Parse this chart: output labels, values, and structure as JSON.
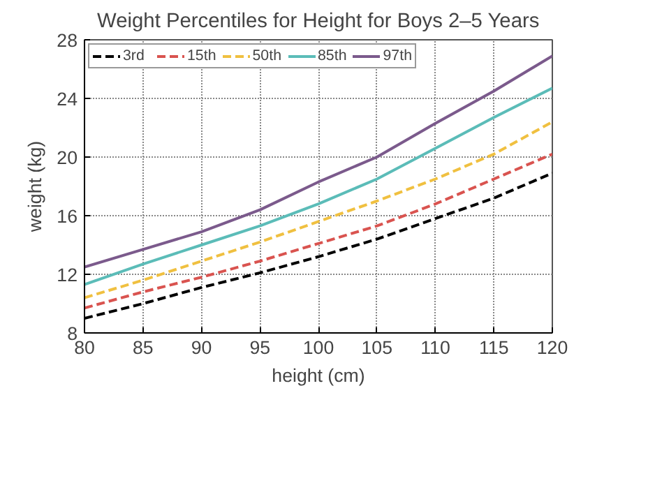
{
  "chart_data": {
    "type": "line",
    "title": "Weight Percentiles for Height for Boys 2–5 Years",
    "xlabel": "height (cm)",
    "ylabel": "weight (kg)",
    "x": [
      80,
      85,
      90,
      95,
      100,
      105,
      110,
      115,
      120
    ],
    "series": [
      {
        "name": "3rd",
        "color": "#000000",
        "line_style": "dashed",
        "values": [
          9.0,
          10.0,
          11.1,
          12.1,
          13.2,
          14.4,
          15.8,
          17.2,
          18.9
        ]
      },
      {
        "name": "15th",
        "color": "#d9534f",
        "line_style": "dashed",
        "values": [
          9.7,
          10.8,
          11.8,
          12.9,
          14.1,
          15.3,
          16.8,
          18.5,
          20.2
        ]
      },
      {
        "name": "50th",
        "color": "#f0c040",
        "line_style": "dashed",
        "values": [
          10.4,
          11.6,
          12.9,
          14.2,
          15.6,
          17.0,
          18.5,
          20.2,
          22.4
        ]
      },
      {
        "name": "85th",
        "color": "#5bbcb8",
        "line_style": "solid",
        "values": [
          11.3,
          12.7,
          14.0,
          15.3,
          16.8,
          18.5,
          20.6,
          22.7,
          24.7
        ]
      },
      {
        "name": "97th",
        "color": "#7b5a8c",
        "line_style": "solid",
        "values": [
          12.5,
          13.7,
          14.9,
          16.4,
          18.3,
          20.0,
          22.3,
          24.5,
          26.9
        ]
      }
    ],
    "xlim": [
      80,
      120
    ],
    "ylim": [
      8,
      28
    ],
    "xticks": [
      80,
      85,
      90,
      95,
      100,
      105,
      110,
      115,
      120
    ],
    "yticks": [
      8,
      12,
      16,
      20,
      24,
      28
    ],
    "grid": true,
    "legend": "top"
  }
}
